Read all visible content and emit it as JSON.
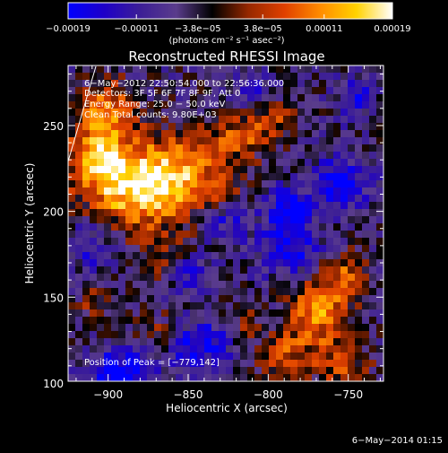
{
  "chart_data": {
    "type": "heatmap",
    "title": "Reconstructed RHESSI Image",
    "xlabel": "Heliocentric X (arcsec)",
    "ylabel": "Heliocentric Y (arcsec)",
    "xlim": [
      -925,
      -728
    ],
    "ylim": [
      101,
      285
    ],
    "xticks": [
      {
        "value": -900,
        "label": "−900"
      },
      {
        "value": -850,
        "label": "−850"
      },
      {
        "value": -800,
        "label": "−800"
      },
      {
        "value": -750,
        "label": "−750"
      }
    ],
    "yticks": [
      {
        "value": 100,
        "label": "100"
      },
      {
        "value": 150,
        "label": "150"
      },
      {
        "value": 200,
        "label": "200"
      },
      {
        "value": 250,
        "label": "250"
      }
    ],
    "colorbar": {
      "range": [
        -0.00019,
        0.00019
      ],
      "ticks": [
        {
          "value": -0.00019,
          "label": "−0.00019"
        },
        {
          "value": -0.00011,
          "label": "−0.00011"
        },
        {
          "value": -3.8e-05,
          "label": "−3.8e−05"
        },
        {
          "value": 3.8e-05,
          "label": "3.8e−05"
        },
        {
          "value": 0.00011,
          "label": "0.00011"
        },
        {
          "value": 0.00019,
          "label": "0.00019"
        }
      ],
      "label": "(photons cm⁻² s⁻¹ asec⁻²)"
    },
    "annotations": [
      "6−May−2012 22:50:54.000 to 22:56:36.000",
      "Detectors: 3F 5F 6F 7F 8F 9F, Att 0",
      "Energy Range: 25.0 − 50.0 keV",
      "Clean    Total counts: 9.80E+03"
    ],
    "peak_label": "Position of Peak = [−779,142]",
    "peak": [
      -779,
      142
    ],
    "colormap_stops": [
      "#0000ff",
      "#1e00c8",
      "#3c1e96",
      "#5a3c8c",
      "#000000",
      "#962800",
      "#e04000",
      "#ff8c00",
      "#ffd200",
      "#ffffff"
    ],
    "blobs": [
      {
        "x": -905,
        "y": 232,
        "sx": 16,
        "sy": 20,
        "a": 1.0
      },
      {
        "x": -880,
        "y": 212,
        "sx": 16,
        "sy": 16,
        "a": 0.95
      },
      {
        "x": -857,
        "y": 222,
        "sx": 14,
        "sy": 16,
        "a": 0.85
      },
      {
        "x": -898,
        "y": 262,
        "sx": 10,
        "sy": 10,
        "a": 0.5
      },
      {
        "x": -818,
        "y": 244,
        "sx": 16,
        "sy": 10,
        "a": 0.6
      },
      {
        "x": -797,
        "y": 256,
        "sx": 10,
        "sy": 8,
        "a": 0.4
      },
      {
        "x": -857,
        "y": 172,
        "sx": 14,
        "sy": 10,
        "a": 0.45
      },
      {
        "x": -830,
        "y": 212,
        "sx": 10,
        "sy": 12,
        "a": 0.55
      },
      {
        "x": -770,
        "y": 142,
        "sx": 12,
        "sy": 14,
        "a": 0.85
      },
      {
        "x": -752,
        "y": 162,
        "sx": 10,
        "sy": 10,
        "a": 0.55
      },
      {
        "x": -790,
        "y": 116,
        "sx": 10,
        "sy": 10,
        "a": 0.6
      },
      {
        "x": -755,
        "y": 112,
        "sx": 12,
        "sy": 10,
        "a": 0.55
      },
      {
        "x": -815,
        "y": 136,
        "sx": 8,
        "sy": 8,
        "a": 0.35
      },
      {
        "x": -908,
        "y": 148,
        "sx": 8,
        "sy": 10,
        "a": 0.35
      },
      {
        "x": -868,
        "y": 130,
        "sx": 10,
        "sy": 8,
        "a": 0.3
      },
      {
        "x": -892,
        "y": 104,
        "sx": 14,
        "sy": 10,
        "a": -0.9
      },
      {
        "x": -842,
        "y": 122,
        "sx": 14,
        "sy": 10,
        "a": -0.65
      },
      {
        "x": -849,
        "y": 166,
        "sx": 9,
        "sy": 9,
        "a": -0.8
      },
      {
        "x": -787,
        "y": 177,
        "sx": 14,
        "sy": 10,
        "a": -0.65
      },
      {
        "x": -787,
        "y": 201,
        "sx": 10,
        "sy": 9,
        "a": -0.7
      },
      {
        "x": -827,
        "y": 196,
        "sx": 10,
        "sy": 10,
        "a": -0.55
      },
      {
        "x": -755,
        "y": 217,
        "sx": 12,
        "sy": 10,
        "a": -0.75
      },
      {
        "x": -745,
        "y": 265,
        "sx": 8,
        "sy": 8,
        "a": -0.5
      },
      {
        "x": -810,
        "y": 270,
        "sx": 10,
        "sy": 8,
        "a": -0.35
      },
      {
        "x": -910,
        "y": 180,
        "sx": 10,
        "sy": 12,
        "a": -0.4
      }
    ],
    "noise_amplitude": 0.28
  },
  "footer": {
    "date_label": "6−May−2014 01:15"
  }
}
